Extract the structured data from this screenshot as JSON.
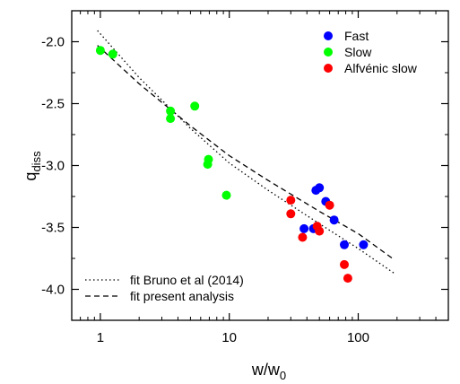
{
  "chart_data": {
    "type": "scatter",
    "title": "",
    "xlabel": "w/w",
    "xlabel_sub": "0",
    "ylabel": "q",
    "ylabel_sub": "diss",
    "xscale": "log",
    "xlim": [
      0.6,
      500
    ],
    "ylim": [
      -4.25,
      -1.75
    ],
    "grid": false,
    "legend_placement": "top-right",
    "xticks": [
      1,
      10,
      100
    ],
    "xtick_labels": [
      "1",
      "10",
      "100"
    ],
    "yticks": [
      -2.0,
      -2.5,
      -3.0,
      -3.5,
      -4.0
    ],
    "ytick_labels": [
      "-2.0",
      "-2.5",
      "-3.0",
      "-3.5",
      "-4.0"
    ],
    "series": [
      {
        "name": "Fast",
        "color": "#0000ff",
        "marker": "circle",
        "points": [
          {
            "x": 38,
            "y": -3.51
          },
          {
            "x": 45,
            "y": -3.51
          },
          {
            "x": 47,
            "y": -3.2
          },
          {
            "x": 50,
            "y": -3.18
          },
          {
            "x": 56,
            "y": -3.29
          },
          {
            "x": 65,
            "y": -3.44
          },
          {
            "x": 78,
            "y": -3.64
          },
          {
            "x": 110,
            "y": -3.64
          }
        ]
      },
      {
        "name": "Slow",
        "color": "#00ff00",
        "marker": "circle",
        "points": [
          {
            "x": 1.0,
            "y": -2.07
          },
          {
            "x": 1.25,
            "y": -2.1
          },
          {
            "x": 3.5,
            "y": -2.56
          },
          {
            "x": 3.5,
            "y": -2.62
          },
          {
            "x": 5.4,
            "y": -2.52
          },
          {
            "x": 6.9,
            "y": -2.95
          },
          {
            "x": 6.8,
            "y": -2.99
          },
          {
            "x": 9.5,
            "y": -3.24
          }
        ]
      },
      {
        "name": "Alfvénic slow",
        "color": "#ff0000",
        "marker": "circle",
        "points": [
          {
            "x": 30,
            "y": -3.28
          },
          {
            "x": 30,
            "y": -3.39
          },
          {
            "x": 37,
            "y": -3.58
          },
          {
            "x": 48,
            "y": -3.49
          },
          {
            "x": 50,
            "y": -3.53
          },
          {
            "x": 60,
            "y": -3.32
          },
          {
            "x": 78,
            "y": -3.8
          },
          {
            "x": 83,
            "y": -3.91
          }
        ]
      }
    ],
    "fits": [
      {
        "name": "fit Bruno et al (2014)",
        "style": "dotted",
        "color": "#000000",
        "points": [
          {
            "x": 0.95,
            "y": -1.91
          },
          {
            "x": 2,
            "y": -2.29
          },
          {
            "x": 5,
            "y": -2.7
          },
          {
            "x": 10,
            "y": -2.98
          },
          {
            "x": 20,
            "y": -3.2
          },
          {
            "x": 50,
            "y": -3.47
          },
          {
            "x": 100,
            "y": -3.67
          },
          {
            "x": 190,
            "y": -3.87
          }
        ]
      },
      {
        "name": "fit present analysis",
        "style": "dashed",
        "color": "#000000",
        "points": [
          {
            "x": 0.95,
            "y": -2.03
          },
          {
            "x": 2,
            "y": -2.34
          },
          {
            "x": 5,
            "y": -2.68
          },
          {
            "x": 10,
            "y": -2.92
          },
          {
            "x": 20,
            "y": -3.12
          },
          {
            "x": 50,
            "y": -3.37
          },
          {
            "x": 100,
            "y": -3.55
          },
          {
            "x": 190,
            "y": -3.76
          }
        ]
      }
    ]
  }
}
